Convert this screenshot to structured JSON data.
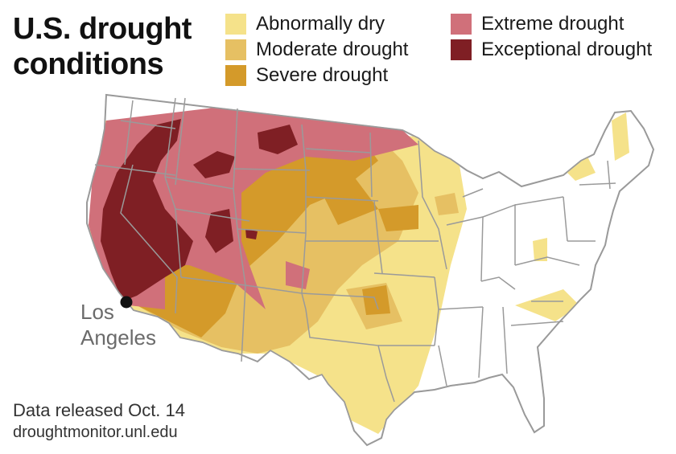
{
  "title": {
    "line1": "U.S. drought",
    "line2": "conditions"
  },
  "legend": {
    "col1": [
      {
        "label": "Abnormally dry",
        "color": "#f5e28a"
      },
      {
        "label": "Moderate drought",
        "color": "#e6c063"
      },
      {
        "label": "Severe drought",
        "color": "#d49a2a"
      }
    ],
    "col2": [
      {
        "label": "Extreme drought",
        "color": "#d0707a"
      },
      {
        "label": "Exceptional drought",
        "color": "#7f1f24"
      }
    ]
  },
  "city": {
    "line1": "Los",
    "line2": "Angeles"
  },
  "footer": {
    "release": "Data released Oct. 14",
    "source": "droughtmonitor.unl.edu"
  },
  "colors": {
    "state_border": "#9a9a9a",
    "land": "#ffffff",
    "marker": "#111111"
  }
}
